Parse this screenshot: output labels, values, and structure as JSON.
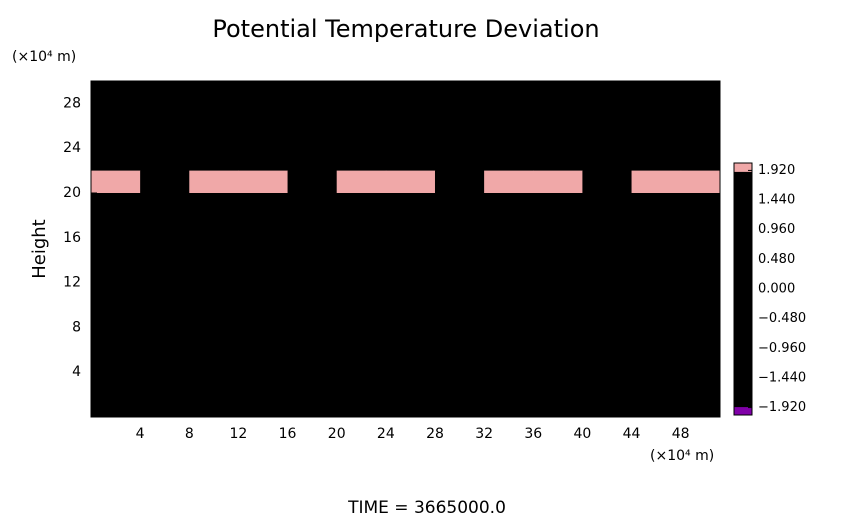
{
  "chart_data": {
    "type": "heatmap",
    "title": "Potential Temperature Deviation",
    "ylabel": "Height",
    "y_unit": "(×10⁴ m)",
    "x_unit": "(×10⁴ m)",
    "footer": "TIME = 3665000.0",
    "xlim": [
      0,
      51.2
    ],
    "ylim": [
      0,
      30
    ],
    "xticks": [
      4,
      8,
      12,
      16,
      20,
      24,
      28,
      32,
      36,
      40,
      44,
      48
    ],
    "yticks": [
      4,
      8,
      12,
      16,
      20,
      24,
      28
    ],
    "x": [
      2,
      6,
      10,
      14,
      18,
      22,
      26,
      30,
      34,
      38,
      42,
      46,
      50
    ],
    "y": [
      29,
      27,
      25,
      23,
      21,
      19,
      17,
      15,
      13,
      11,
      9,
      7,
      5,
      3,
      1
    ],
    "z": [
      [
        0.5,
        0.4,
        0.6,
        1.0,
        1.2,
        1.0,
        0.6,
        0.3,
        0.1,
        -0.3,
        -0.6,
        -0.8,
        -0.6
      ],
      [
        0.3,
        0.5,
        0.9,
        1.6,
        1.7,
        1.4,
        0.9,
        0.5,
        0.2,
        -0.2,
        -0.5,
        -0.8,
        -0.7
      ],
      [
        -0.3,
        0.0,
        0.3,
        0.6,
        0.8,
        1.0,
        0.9,
        0.6,
        0.4,
        0.3,
        0.2,
        0.0,
        -0.1
      ],
      [
        -0.5,
        -0.8,
        -0.9,
        -0.4,
        0.6,
        1.4,
        1.2,
        0.8,
        0.6,
        0.8,
        0.9,
        1.2,
        0.6
      ],
      [
        2.0,
        -1.9,
        2.0,
        2.0,
        -1.8,
        2.0,
        2.0,
        -1.5,
        2.0,
        2.0,
        -1.8,
        2.0,
        2.0
      ],
      [
        0.3,
        0.2,
        0.2,
        0.5,
        1.2,
        0.3,
        0.2,
        0.2,
        0.2,
        0.3,
        0.2,
        0.2,
        0.2
      ],
      [
        0.2,
        0.1,
        -0.3,
        0.2,
        0.3,
        0.5,
        1.0,
        0.3,
        0.1,
        0.2,
        0.3,
        0.2,
        0.1
      ],
      [
        0.1,
        0.2,
        0.1,
        0.0,
        0.2,
        0.1,
        0.2,
        0.0,
        0.1,
        0.2,
        0.1,
        0.0,
        0.1
      ],
      [
        0.3,
        0.2,
        0.1,
        0.2,
        0.3,
        0.2,
        0.1,
        0.2,
        0.3,
        0.2,
        0.1,
        0.2,
        0.2
      ],
      [
        0.2,
        0.3,
        0.2,
        0.3,
        0.2,
        0.3,
        0.2,
        0.3,
        0.2,
        0.3,
        0.2,
        0.3,
        0.2
      ],
      [
        0.6,
        0.5,
        -0.3,
        0.4,
        0.8,
        0.5,
        -0.7,
        0.6,
        0.4,
        1.0,
        0.5,
        0.6,
        0.4
      ],
      [
        0.2,
        0.1,
        0.2,
        0.1,
        0.2,
        0.1,
        0.2,
        0.1,
        0.2,
        0.1,
        0.2,
        0.1,
        0.2
      ],
      [
        0.1,
        0.2,
        0.1,
        0.2,
        0.1,
        0.2,
        0.1,
        0.2,
        0.1,
        0.2,
        0.1,
        0.2,
        0.1
      ],
      [
        0.2,
        0.1,
        0.2,
        0.1,
        0.2,
        0.1,
        0.2,
        0.1,
        0.2,
        0.1,
        0.2,
        0.1,
        0.2
      ],
      [
        0.1,
        0.2,
        0.1,
        0.2,
        0.1,
        0.2,
        0.1,
        0.2,
        0.1,
        0.2,
        0.1,
        0.2,
        0.1
      ]
    ],
    "clim": [
      -2.04,
      2.04
    ],
    "zticks": [
      {
        "value": 1.92,
        "label": "1.920"
      },
      {
        "value": 1.44,
        "label": "1.440"
      },
      {
        "value": 0.96,
        "label": "0.960"
      },
      {
        "value": 0.48,
        "label": "0.480"
      },
      {
        "value": 0,
        "label": "0.000"
      },
      {
        "value": -0.48,
        "label": "−0.480"
      },
      {
        "value": -0.96,
        "label": "−0.960"
      },
      {
        "value": -1.44,
        "label": "−1.440"
      },
      {
        "value": -1.92,
        "label": "−1.920"
      }
    ],
    "colors": [
      "#f0a8a8",
      "#ff3010",
      "#ffd800",
      "#a8f000",
      "#40e040",
      "#00e0e0",
      "#0080ff",
      "#0010d0",
      "#8000a8"
    ]
  }
}
